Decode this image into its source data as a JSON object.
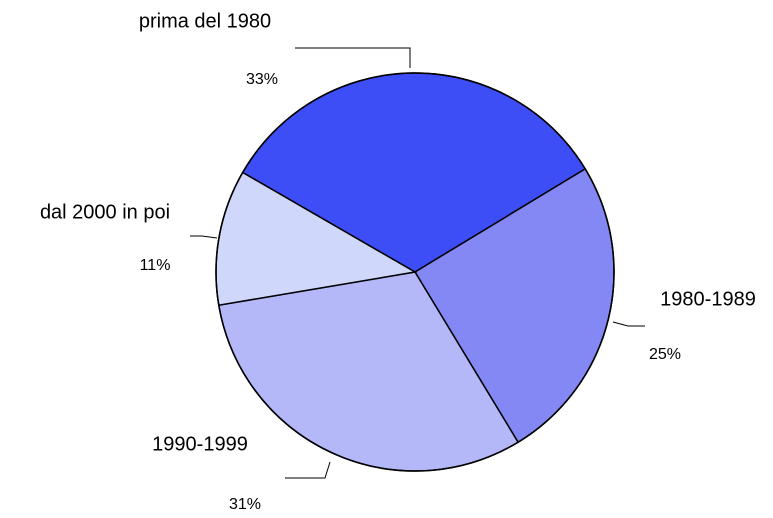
{
  "chart_data": {
    "type": "pie",
    "categories": [
      "prima del 1980",
      "1980-1989",
      "1990-1999",
      "dal 2000 in poi"
    ],
    "values": [
      33,
      25,
      31,
      11
    ],
    "value_labels": [
      "33%",
      "25%",
      "31%",
      "11%"
    ],
    "colors": [
      "#3d4ef7",
      "#8488f5",
      "#b5b8f8",
      "#cfd8fb"
    ]
  }
}
